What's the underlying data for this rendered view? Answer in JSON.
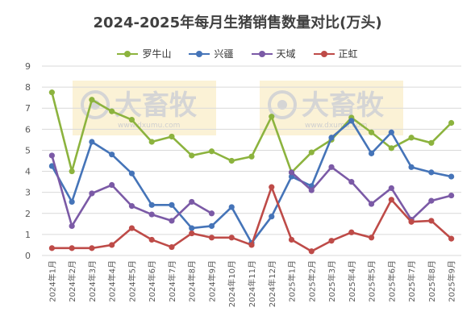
{
  "title": "2024-2025年每月生猪销售数量对比(万头)",
  "watermark": {
    "brand": "大畜牧",
    "site": "www.dxumu.com"
  },
  "chart_data": {
    "type": "line",
    "title": "2024-2025年每月生猪销售数量对比(万头)",
    "xlabel": "",
    "ylabel": "",
    "ylim": [
      0,
      9
    ],
    "yticks": [
      "0",
      "1",
      "2",
      "3",
      "4",
      "5",
      "6",
      "7",
      "8",
      "9"
    ],
    "grid": true,
    "legend_position": "top",
    "categories": [
      "2024年1月",
      "2024年2月",
      "2024年3月",
      "2024年4月",
      "2024年5月",
      "2024年6月",
      "2024年7月",
      "2024年8月",
      "2024年9月",
      "2024年10月",
      "2024年11月",
      "2024年12月",
      "2025年1月",
      "2025年2月",
      "2025年3月",
      "2025年4月",
      "2025年5月",
      "2025年6月",
      "2025年7月",
      "2025年8月",
      "2025年9月"
    ],
    "series": [
      {
        "name": "罗牛山",
        "color": "#8cb33e",
        "values": [
          7.75,
          4.0,
          7.4,
          6.85,
          6.45,
          5.4,
          5.65,
          4.75,
          4.95,
          4.5,
          4.7,
          6.6,
          3.95,
          4.9,
          5.5,
          6.55,
          5.85,
          5.1,
          5.6,
          5.35,
          6.3
        ]
      },
      {
        "name": "兴疆",
        "color": "#4574b8",
        "values": [
          4.25,
          2.55,
          5.4,
          4.8,
          3.9,
          2.4,
          2.4,
          1.3,
          1.4,
          2.3,
          0.6,
          1.85,
          3.75,
          3.3,
          5.6,
          6.4,
          4.85,
          5.85,
          4.2,
          3.95,
          3.75
        ]
      },
      {
        "name": "天域",
        "color": "#7b5aa6",
        "values": [
          4.75,
          1.4,
          2.95,
          3.35,
          2.35,
          1.95,
          1.65,
          2.55,
          2.0,
          null,
          null,
          null,
          3.95,
          3.1,
          4.2,
          3.5,
          2.45,
          3.2,
          1.7,
          2.6,
          2.85
        ]
      },
      {
        "name": "正虹",
        "color": "#be4b48",
        "values": [
          0.35,
          0.35,
          0.35,
          0.5,
          1.3,
          0.75,
          0.4,
          1.05,
          0.85,
          0.85,
          0.5,
          3.25,
          0.75,
          0.2,
          0.7,
          1.1,
          0.85,
          2.65,
          1.6,
          1.65,
          0.8
        ]
      }
    ]
  }
}
